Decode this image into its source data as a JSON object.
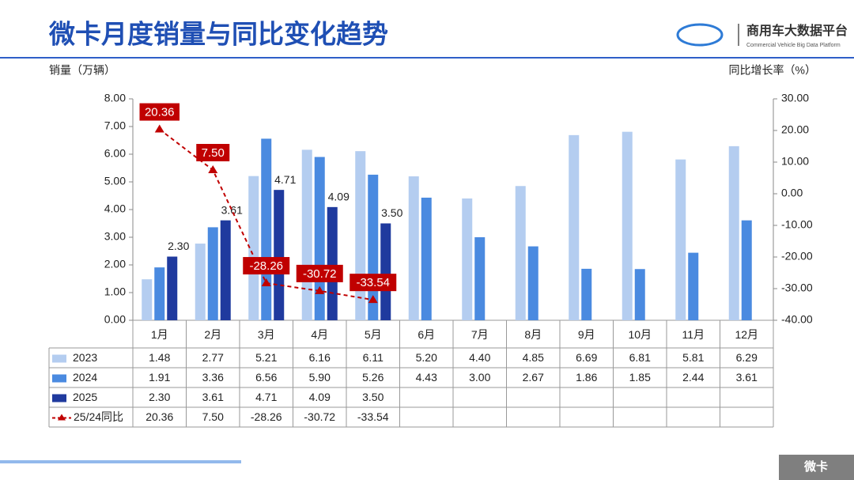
{
  "title": "微卡月度销量与同比变化趋势",
  "logo": {
    "name": "商用车大数据平台",
    "subtitle": "Commercial Vehicle Big Data Platform"
  },
  "footer_tag": "微卡",
  "chart_data": {
    "type": "bar",
    "y_label": "销量（万辆）",
    "y2_label": "同比增长率（%）",
    "categories": [
      "1月",
      "2月",
      "3月",
      "4月",
      "5月",
      "6月",
      "7月",
      "8月",
      "9月",
      "10月",
      "11月",
      "12月"
    ],
    "series": [
      {
        "name": "2023",
        "color": "#b4cdf0",
        "values": [
          1.48,
          2.77,
          5.21,
          6.16,
          6.11,
          5.2,
          4.4,
          4.85,
          6.69,
          6.81,
          5.81,
          6.29
        ],
        "value_labels": [
          "1.48",
          "2.77",
          "5.21",
          "6.16",
          "6.11",
          "5.20",
          "4.40",
          "4.85",
          "6.69",
          "6.81",
          "5.81",
          "6.29"
        ]
      },
      {
        "name": "2024",
        "color": "#4a8ae0",
        "values": [
          1.91,
          3.36,
          6.56,
          5.9,
          5.26,
          4.43,
          3.0,
          2.67,
          1.86,
          1.85,
          2.44,
          3.61
        ],
        "value_labels": [
          "1.91",
          "3.36",
          "6.56",
          "5.90",
          "5.26",
          "4.43",
          "3.00",
          "2.67",
          "1.86",
          "1.85",
          "2.44",
          "3.61"
        ]
      },
      {
        "name": "2025",
        "color": "#1f3a9e",
        "labels": true,
        "values": [
          2.3,
          3.61,
          4.71,
          4.09,
          3.5,
          null,
          null,
          null,
          null,
          null,
          null,
          null
        ],
        "value_labels": [
          "2.30",
          "3.61",
          "4.71",
          "4.09",
          "3.50",
          null,
          null,
          null,
          null,
          null,
          null,
          null
        ]
      },
      {
        "name": "25/24同比",
        "type": "line",
        "axis": "y2",
        "color": "#c00000",
        "labels": true,
        "values": [
          20.36,
          7.5,
          -28.26,
          -30.72,
          -33.54,
          null,
          null,
          null,
          null,
          null,
          null,
          null
        ],
        "value_labels": [
          "20.36",
          "7.50",
          "-28.26",
          "-30.72",
          "-33.54",
          null,
          null,
          null,
          null,
          null,
          null,
          null
        ]
      }
    ],
    "ylim": [
      0,
      8
    ],
    "yticks": [
      {
        "value": 0,
        "label": "0.00"
      },
      {
        "value": 1,
        "label": "1.00"
      },
      {
        "value": 2,
        "label": "2.00"
      },
      {
        "value": 3,
        "label": "3.00"
      },
      {
        "value": 4,
        "label": "4.00"
      },
      {
        "value": 5,
        "label": "5.00"
      },
      {
        "value": 6,
        "label": "6.00"
      },
      {
        "value": 7,
        "label": "7.00"
      },
      {
        "value": 8,
        "label": "8.00"
      }
    ],
    "y2lim": [
      -40,
      30
    ],
    "y2ticks": [
      {
        "value": -40,
        "label": "-40.00"
      },
      {
        "value": -30,
        "label": "-30.00"
      },
      {
        "value": -20,
        "label": "-20.00"
      },
      {
        "value": -10,
        "label": "-10.00"
      },
      {
        "value": 0,
        "label": "0.00"
      },
      {
        "value": 10,
        "label": "10.00"
      },
      {
        "value": 20,
        "label": "20.00"
      },
      {
        "value": 30,
        "label": "30.00"
      }
    ]
  }
}
